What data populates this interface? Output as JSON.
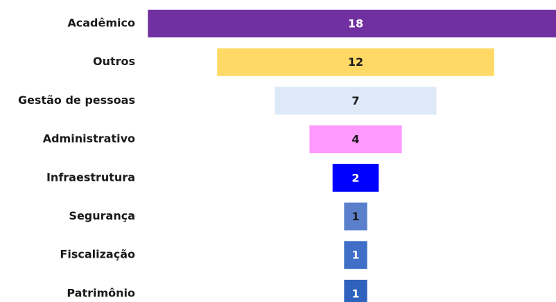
{
  "chart_data": {
    "type": "funnel",
    "categories": [
      "Acadêmico",
      "Outros",
      "Gestão de pessoas",
      "Administrativo",
      "Infraestrutura",
      "Segurança",
      "Fiscalização",
      "Patrimônio"
    ],
    "values": [
      18,
      12,
      7,
      4,
      2,
      1,
      1,
      1
    ],
    "colors": [
      "#7030a0",
      "#ffd966",
      "#dde9f7",
      "#ff99ff",
      "#0000ff",
      "#5a80cc",
      "#3f6fc6",
      "#2f62bd"
    ]
  }
}
